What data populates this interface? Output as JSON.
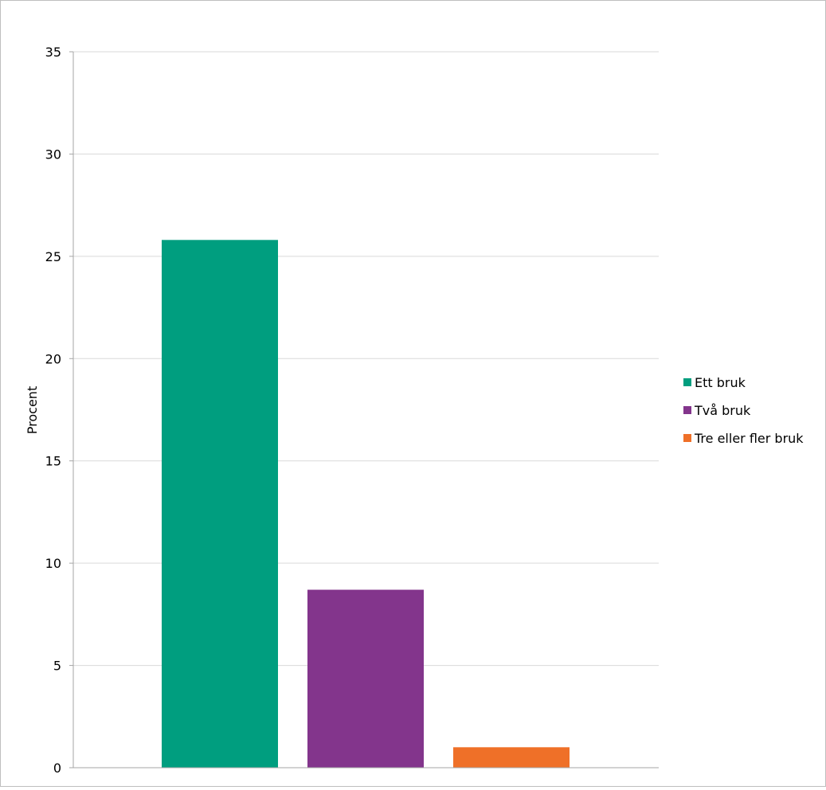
{
  "chart_data": {
    "type": "bar",
    "title": "",
    "xlabel": "",
    "ylabel": "Procent",
    "ylim": [
      0,
      35
    ],
    "yticks": [
      0,
      5,
      10,
      15,
      20,
      25,
      30,
      35
    ],
    "grid": true,
    "legend_position": "right",
    "series": [
      {
        "name": "Ett bruk",
        "value": 25.8,
        "color": "#009e7f"
      },
      {
        "name": "Två bruk",
        "value": 8.7,
        "color": "#83358c"
      },
      {
        "name": "Tre eller fler bruk",
        "value": 1.0,
        "color": "#ef7028"
      }
    ]
  }
}
